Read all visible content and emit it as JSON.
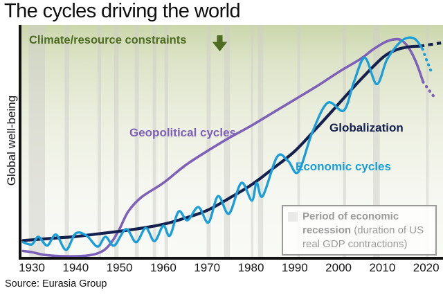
{
  "title": "The cycles driving the world",
  "y_axis_label": "Global well-being",
  "source": "Source: Eurasia Group",
  "annotation": {
    "label": "Climate/resource constraints",
    "arrow_count": 3,
    "color": "#4d6b21"
  },
  "legend": {
    "swatch_color": "#e9e9e7",
    "line1_bold": "Period of economic",
    "line2_bold": "recession",
    "line2_rest": " (duration of US",
    "line3": "real GDP contractions)"
  },
  "x_ticks": [
    "1930",
    "1940",
    "1950",
    "1960",
    "1970",
    "1980",
    "1990",
    "2000",
    "2010",
    "2020"
  ],
  "chart_data": {
    "type": "line",
    "title": "The cycles driving the world",
    "xlabel": "",
    "ylabel": "Global well-being",
    "x_range": [
      1928,
      2023.5
    ],
    "y_range": [
      0,
      100
    ],
    "y_units": "relative well-being index (unlabeled axis)",
    "grid": false,
    "band_color": "rgba(205,206,200,0.5)",
    "recessions_note": "Period of economic recession (duration of US real GDP contractions)",
    "recessions": [
      [
        1929.3,
        1933
      ],
      [
        1937.5,
        1938.5
      ],
      [
        1945,
        1945.8
      ],
      [
        1948.8,
        1949.8
      ],
      [
        1953.5,
        1954.4
      ],
      [
        1957.6,
        1958.4
      ],
      [
        1960.3,
        1961.1
      ],
      [
        1969.9,
        1970.8
      ],
      [
        1973.9,
        1975.2
      ],
      [
        1980,
        1980.5
      ],
      [
        1981.6,
        1982.8
      ],
      [
        1990.6,
        1991.2
      ],
      [
        2001,
        2001.7
      ],
      [
        2007.9,
        2009.4
      ],
      [
        2020,
        2020.4
      ]
    ],
    "series": [
      {
        "name": "Geopolitical cycles",
        "color": "#7d61b8",
        "stroke_width": 3.6,
        "projection_style": "dots",
        "points": [
          [
            1928,
            3
          ],
          [
            1930,
            2.5
          ],
          [
            1933,
            1.2
          ],
          [
            1938,
            0.6
          ],
          [
            1943,
            1
          ],
          [
            1946,
            2.8
          ],
          [
            1948,
            6.5
          ],
          [
            1950,
            13
          ],
          [
            1952,
            21
          ],
          [
            1955,
            27.5
          ],
          [
            1960,
            34
          ],
          [
            1965,
            42
          ],
          [
            1970,
            48.5
          ],
          [
            1975,
            54.5
          ],
          [
            1980,
            60
          ],
          [
            1985,
            66
          ],
          [
            1990,
            72
          ],
          [
            1995,
            78
          ],
          [
            2000,
            84.5
          ],
          [
            2005,
            90.5
          ],
          [
            2008,
            95
          ],
          [
            2011,
            98.5
          ],
          [
            2013.5,
            99.5
          ],
          [
            2015,
            98
          ],
          [
            2016.5,
            94
          ],
          [
            2018,
            87.5
          ],
          [
            2019.3,
            80
          ]
        ],
        "projection": [
          [
            2019.3,
            80
          ],
          [
            2020.1,
            77.8
          ],
          [
            2020.9,
            75.6
          ],
          [
            2021.7,
            73.5
          ]
        ]
      },
      {
        "name": "Globalization",
        "color": "#14204d",
        "stroke_width": 4.2,
        "projection_style": "dash",
        "points": [
          [
            1928,
            7.8
          ],
          [
            1932,
            8.4
          ],
          [
            1936,
            9
          ],
          [
            1940,
            9.6
          ],
          [
            1945,
            10.8
          ],
          [
            1950,
            12
          ],
          [
            1955,
            13.4
          ],
          [
            1960,
            15.2
          ],
          [
            1965,
            18
          ],
          [
            1970,
            21.5
          ],
          [
            1975,
            27
          ],
          [
            1980,
            33
          ],
          [
            1985,
            40.5
          ],
          [
            1990,
            48.5
          ],
          [
            1995,
            59
          ],
          [
            2000,
            70
          ],
          [
            2005,
            81
          ],
          [
            2010,
            91
          ],
          [
            2013,
            94.5
          ],
          [
            2016,
            96
          ],
          [
            2018.5,
            96.3
          ]
        ],
        "projection": [
          [
            2018.5,
            96.3
          ],
          [
            2023.4,
            97.8
          ]
        ]
      },
      {
        "name": "Economic cycles",
        "color": "#1b9ed8",
        "stroke_width": 3.4,
        "projection_style": "dots",
        "points": [
          [
            1928,
            7
          ],
          [
            1930,
            6
          ],
          [
            1931.5,
            9.5
          ],
          [
            1933.5,
            5.5
          ],
          [
            1935.5,
            10.5
          ],
          [
            1937.8,
            3.5
          ],
          [
            1940,
            11
          ],
          [
            1942.5,
            10
          ],
          [
            1945,
            5
          ],
          [
            1946.8,
            9.5
          ],
          [
            1948.8,
            5.5
          ],
          [
            1951.5,
            13
          ],
          [
            1953.8,
            7
          ],
          [
            1956,
            13.5
          ],
          [
            1958,
            7.5
          ],
          [
            1960,
            14.5
          ],
          [
            1961.5,
            10
          ],
          [
            1963.5,
            21
          ],
          [
            1965.5,
            17
          ],
          [
            1968,
            23
          ],
          [
            1970.3,
            16
          ],
          [
            1972.5,
            28
          ],
          [
            1975,
            20
          ],
          [
            1977.8,
            34
          ],
          [
            1980.2,
            26
          ],
          [
            1981.3,
            34
          ],
          [
            1982.7,
            28
          ],
          [
            1986,
            46
          ],
          [
            1988.5,
            44
          ],
          [
            1990.8,
            39
          ],
          [
            1994,
            57
          ],
          [
            1997.5,
            70.5
          ],
          [
            2001.2,
            67
          ],
          [
            2003.5,
            80
          ],
          [
            2006,
            91
          ],
          [
            2008.7,
            79
          ],
          [
            2011,
            90
          ],
          [
            2013.5,
            97
          ],
          [
            2015.5,
            100
          ],
          [
            2017.5,
            99.5
          ],
          [
            2019.2,
            95
          ]
        ],
        "projection": [
          [
            2019.2,
            95
          ],
          [
            2019.9,
            91
          ],
          [
            2020.6,
            87.5
          ],
          [
            2021.3,
            84
          ]
        ]
      }
    ]
  }
}
